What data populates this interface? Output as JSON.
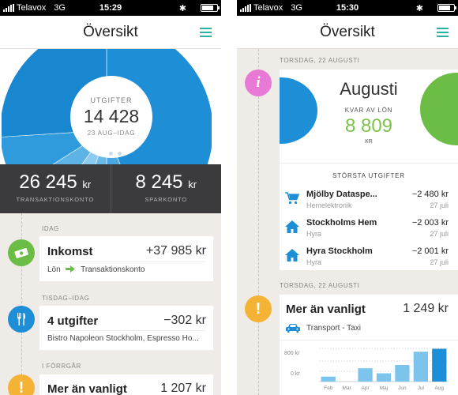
{
  "colors": {
    "accent": "#26b5a4",
    "blue": "#1e8ed6",
    "green": "#6cbd45",
    "dark": "#3b3b3d",
    "pink": "#e87ad5",
    "yellow": "#f5b335"
  },
  "left": {
    "status": {
      "carrier": "Telavox",
      "network": "3G",
      "time": "15:29"
    },
    "title": "Översikt",
    "menu_icon": "hamburger-menu-icon",
    "spending": {
      "label": "UTGIFTER",
      "amount": "14 428",
      "period": "23 AUG–IDAG"
    },
    "pie_slices": [
      44,
      6,
      5,
      5,
      6,
      8,
      26
    ],
    "page_dots": {
      "count": 3,
      "active": 0
    },
    "balances": [
      {
        "amount": "26 245",
        "unit": "kr",
        "label": "TRANSAKTIONSKONTO"
      },
      {
        "amount": "8 245",
        "unit": "kr",
        "label": "SPARKONTO"
      }
    ],
    "feed": [
      {
        "section": "IDAG",
        "icon": "money-icon",
        "title": "Inkomst",
        "amount": "+37 985 kr",
        "from": "Lön",
        "to": "Transaktionskonto"
      },
      {
        "section": "TISDAG–IDAG",
        "icon": "cutlery-icon",
        "title": "4 utgifter",
        "amount": "−302 kr",
        "detail": "Bistro Napoleon Stockholm, Espresso Ho..."
      },
      {
        "section": "I FÖRRGÅR",
        "icon": "exclamation-icon",
        "title": "Mer än vanligt",
        "amount": "1 207 kr"
      }
    ]
  },
  "right": {
    "status": {
      "carrier": "Telavox",
      "network": "3G",
      "time": "15:30"
    },
    "title": "Översikt",
    "menu_icon": "hamburger-menu-icon",
    "month": {
      "date": "TORSDAG, 22 AUGUSTI",
      "icon": "info-icon",
      "name": "Augusti",
      "remaining_label": "KVAR AV LÖN",
      "remaining": "8 809",
      "unit": "KR"
    },
    "biggest": {
      "heading": "STÖRSTA UTGIFTER",
      "items": [
        {
          "icon": "cart-icon",
          "name": "Mjölby Dataspe...",
          "category": "Hemelektronik",
          "amount": "−2 480 kr",
          "date": "27 juli"
        },
        {
          "icon": "house-icon",
          "name": "Stockholms Hem",
          "category": "Hyra",
          "amount": "−2 003 kr",
          "date": "27 juli"
        },
        {
          "icon": "house-icon",
          "name": "Hyra Stockholm",
          "category": "Hyra",
          "amount": "−2 001 kr",
          "date": "27 juli"
        }
      ]
    },
    "unusual": {
      "date": "TORSDAG, 22 AUGUSTI",
      "icon": "exclamation-icon",
      "title": "Mer än vanligt",
      "amount": "1 249 kr",
      "category_icon": "car-icon",
      "category": "Transport - Taxi",
      "chart_data": {
        "type": "bar",
        "categories": [
          "Feb",
          "Mar",
          "Apr",
          "Maj",
          "Jun",
          "Jul",
          "Aug"
        ],
        "values": [
          120,
          0,
          320,
          200,
          400,
          720,
          790
        ],
        "ytick_labels": [
          "800 kr",
          "0 kr"
        ],
        "ylim": [
          0,
          800
        ]
      }
    }
  }
}
